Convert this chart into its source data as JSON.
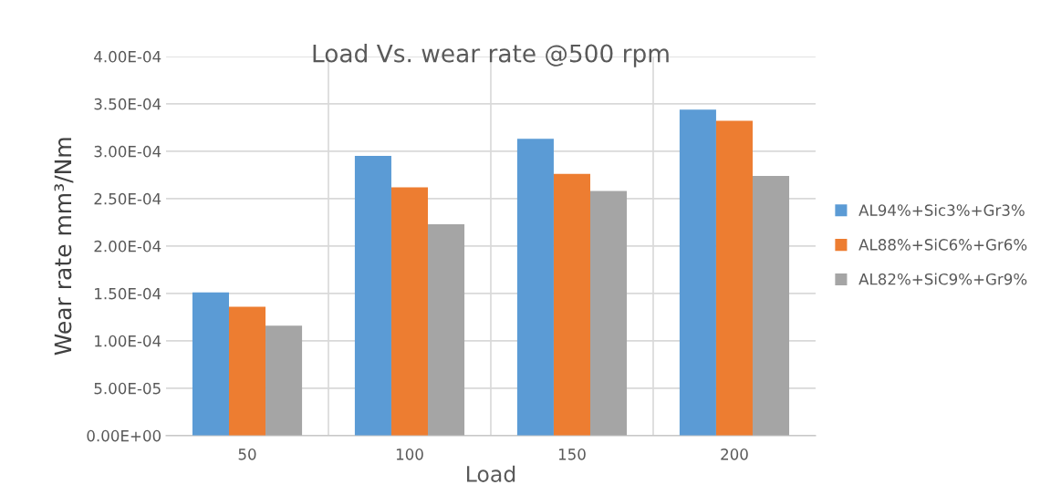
{
  "chart_data": {
    "type": "bar",
    "title": "Load Vs. wear rate @500 rpm",
    "xlabel": "Load",
    "ylabel": "Wear rate mm³/Nm",
    "categories": [
      "50",
      "100",
      "150",
      "200"
    ],
    "series": [
      {
        "name": "AL94%+Sic3%+Gr3%",
        "color": "#5b9bd5",
        "values": [
          0.000151,
          0.000295,
          0.000313,
          0.000344
        ]
      },
      {
        "name": "AL88%+SiC6%+Gr6%",
        "color": "#ed7d31",
        "values": [
          0.000136,
          0.000262,
          0.000276,
          0.000332
        ]
      },
      {
        "name": "AL82%+SiC9%+Gr9%",
        "color": "#a5a5a5",
        "values": [
          0.000116,
          0.000223,
          0.000258,
          0.000274
        ]
      }
    ],
    "ylim": [
      0,
      0.0004
    ],
    "yticks": [
      {
        "value": 0,
        "label": "0.00E+00"
      },
      {
        "value": 5e-05,
        "label": "5.00E-05"
      },
      {
        "value": 0.0001,
        "label": "1.00E-04"
      },
      {
        "value": 0.00015,
        "label": "1.50E-04"
      },
      {
        "value": 0.0002,
        "label": "2.00E-04"
      },
      {
        "value": 0.00025,
        "label": "2.50E-04"
      },
      {
        "value": 0.0003,
        "label": "3.00E-04"
      },
      {
        "value": 0.00035,
        "label": "3.50E-04"
      },
      {
        "value": 0.0004,
        "label": "4.00E-04"
      }
    ],
    "grid": true,
    "legend": "right"
  }
}
